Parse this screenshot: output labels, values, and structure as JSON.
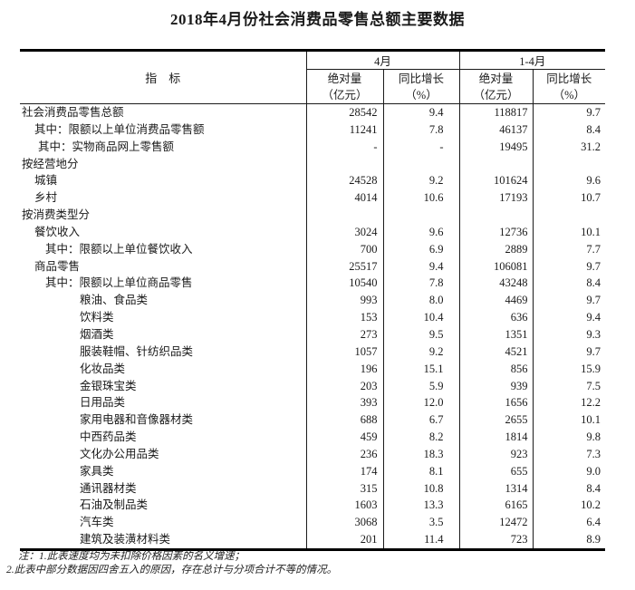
{
  "page": {
    "title": "2018年4月份社会消费品零售总额主要数据"
  },
  "table": {
    "header": {
      "indicator": "指　标",
      "group_april": "4月",
      "group_jan_apr": "1-4月",
      "abs_label": "绝对量",
      "abs_unit": "（亿元）",
      "yoy_label": "同比增长",
      "yoy_unit": "（%）"
    },
    "rows": [
      {
        "label": "社会消费品零售总额",
        "indent": 0,
        "april_abs": "28542",
        "april_yoy": "9.4",
        "cum_abs": "118817",
        "cum_yoy": "9.7"
      },
      {
        "label": "其中：限额以上单位消费品零售额",
        "indent": 1,
        "april_abs": "11241",
        "april_yoy": "7.8",
        "cum_abs": "46137",
        "cum_yoy": "8.4"
      },
      {
        "label": "其中：实物商品网上零售额",
        "indent": 2,
        "april_abs": "-",
        "april_yoy": "-",
        "cum_abs": "19495",
        "cum_yoy": "31.2"
      },
      {
        "label": "按经营地分",
        "indent": 0,
        "april_abs": "",
        "april_yoy": "",
        "cum_abs": "",
        "cum_yoy": ""
      },
      {
        "label": "城镇",
        "indent": 1,
        "april_abs": "24528",
        "april_yoy": "9.2",
        "cum_abs": "101624",
        "cum_yoy": "9.6"
      },
      {
        "label": "乡村",
        "indent": 1,
        "april_abs": "4014",
        "april_yoy": "10.6",
        "cum_abs": "17193",
        "cum_yoy": "10.7"
      },
      {
        "label": "按消费类型分",
        "indent": 0,
        "april_abs": "",
        "april_yoy": "",
        "cum_abs": "",
        "cum_yoy": ""
      },
      {
        "label": "餐饮收入",
        "indent": 1,
        "april_abs": "3024",
        "april_yoy": "9.6",
        "cum_abs": "12736",
        "cum_yoy": "10.1"
      },
      {
        "label": "其中：限额以上单位餐饮收入",
        "indent": 3,
        "april_abs": "700",
        "april_yoy": "6.9",
        "cum_abs": "2889",
        "cum_yoy": "7.7"
      },
      {
        "label": "商品零售",
        "indent": 1,
        "april_abs": "25517",
        "april_yoy": "9.4",
        "cum_abs": "106081",
        "cum_yoy": "9.7"
      },
      {
        "label": "其中：限额以上单位商品零售",
        "indent": 3,
        "april_abs": "10540",
        "april_yoy": "7.8",
        "cum_abs": "43248",
        "cum_yoy": "8.4"
      },
      {
        "label": "粮油、食品类",
        "indent": 4,
        "april_abs": "993",
        "april_yoy": "8.0",
        "cum_abs": "4469",
        "cum_yoy": "9.7"
      },
      {
        "label": "饮料类",
        "indent": 4,
        "april_abs": "153",
        "april_yoy": "10.4",
        "cum_abs": "636",
        "cum_yoy": "9.4"
      },
      {
        "label": "烟酒类",
        "indent": 4,
        "april_abs": "273",
        "april_yoy": "9.5",
        "cum_abs": "1351",
        "cum_yoy": "9.3"
      },
      {
        "label": "服装鞋帽、针纺织品类",
        "indent": 4,
        "april_abs": "1057",
        "april_yoy": "9.2",
        "cum_abs": "4521",
        "cum_yoy": "9.7"
      },
      {
        "label": "化妆品类",
        "indent": 4,
        "april_abs": "196",
        "april_yoy": "15.1",
        "cum_abs": "856",
        "cum_yoy": "15.9"
      },
      {
        "label": "金银珠宝类",
        "indent": 4,
        "april_abs": "203",
        "april_yoy": "5.9",
        "cum_abs": "939",
        "cum_yoy": "7.5"
      },
      {
        "label": "日用品类",
        "indent": 4,
        "april_abs": "393",
        "april_yoy": "12.0",
        "cum_abs": "1656",
        "cum_yoy": "12.2"
      },
      {
        "label": "家用电器和音像器材类",
        "indent": 4,
        "april_abs": "688",
        "april_yoy": "6.7",
        "cum_abs": "2655",
        "cum_yoy": "10.1"
      },
      {
        "label": "中西药品类",
        "indent": 4,
        "april_abs": "459",
        "april_yoy": "8.2",
        "cum_abs": "1814",
        "cum_yoy": "9.8"
      },
      {
        "label": "文化办公用品类",
        "indent": 4,
        "april_abs": "236",
        "april_yoy": "18.3",
        "cum_abs": "923",
        "cum_yoy": "7.3"
      },
      {
        "label": "家具类",
        "indent": 4,
        "april_abs": "174",
        "april_yoy": "8.1",
        "cum_abs": "655",
        "cum_yoy": "9.0"
      },
      {
        "label": "通讯器材类",
        "indent": 4,
        "april_abs": "315",
        "april_yoy": "10.8",
        "cum_abs": "1314",
        "cum_yoy": "8.4"
      },
      {
        "label": "石油及制品类",
        "indent": 4,
        "april_abs": "1603",
        "april_yoy": "13.3",
        "cum_abs": "6165",
        "cum_yoy": "10.2"
      },
      {
        "label": "汽车类",
        "indent": 4,
        "april_abs": "3068",
        "april_yoy": "3.5",
        "cum_abs": "12472",
        "cum_yoy": "6.4"
      },
      {
        "label": "建筑及装潢材料类",
        "indent": 4,
        "april_abs": "201",
        "april_yoy": "11.4",
        "cum_abs": "723",
        "cum_yoy": "8.9"
      }
    ]
  },
  "notes": {
    "line1": "注：1.此表速度均为未扣除价格因素的名义增速；",
    "line2": "2.此表中部分数据因四舍五入的原因，存在总计与分项合计不等的情况。"
  }
}
